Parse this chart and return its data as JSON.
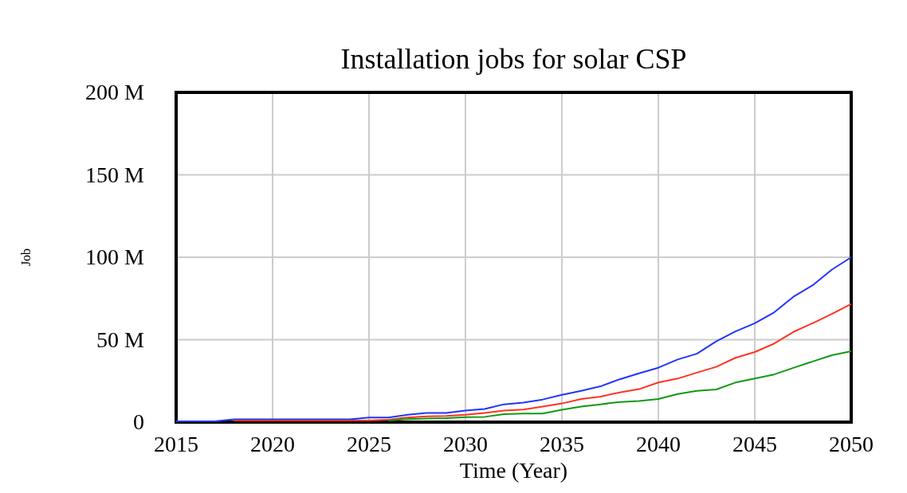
{
  "chart_data": {
    "type": "line",
    "title": "Installation jobs for solar CSP",
    "xlabel": "Time (Year)",
    "ylabel": "Job",
    "x": [
      2015,
      2016,
      2017,
      2018,
      2019,
      2020,
      2021,
      2022,
      2023,
      2024,
      2025,
      2026,
      2027,
      2028,
      2029,
      2030,
      2031,
      2032,
      2033,
      2034,
      2035,
      2036,
      2037,
      2038,
      2039,
      2040,
      2041,
      2042,
      2043,
      2044,
      2045,
      2046,
      2047,
      2048,
      2049,
      2050
    ],
    "series": [
      {
        "color": "#2233ff",
        "values": [
          0.5,
          0.5,
          0.5,
          1.7,
          1.7,
          1.7,
          1.7,
          1.7,
          1.7,
          1.7,
          2.8,
          2.8,
          4.5,
          5.6,
          5.6,
          7,
          8,
          10.8,
          11.8,
          13.7,
          16.5,
          19,
          21.7,
          26,
          29.6,
          33,
          38,
          41.5,
          49,
          55,
          60,
          66.5,
          76,
          83,
          92.5,
          100
        ]
      },
      {
        "color": "#ff3322",
        "values": [
          null,
          null,
          null,
          1,
          1,
          1,
          1,
          1,
          1,
          1,
          1,
          1.5,
          2.8,
          3.5,
          3.8,
          4.5,
          5.5,
          7,
          7.6,
          9.4,
          11.3,
          14,
          15.5,
          18,
          20,
          24,
          26.4,
          30,
          33.5,
          39,
          42.5,
          47.6,
          54.7,
          60,
          65.6,
          71.7
        ]
      },
      {
        "color": "#119911",
        "values": [
          null,
          null,
          null,
          null,
          null,
          null,
          null,
          null,
          null,
          null,
          null,
          1,
          1.8,
          2.2,
          2.4,
          3,
          3.2,
          4.8,
          5.2,
          5.2,
          7.5,
          9.4,
          10.8,
          12.2,
          12.8,
          14,
          17,
          19,
          19.8,
          24,
          26.4,
          28.9,
          32.9,
          36.8,
          40.6,
          43
        ]
      }
    ],
    "xlim": [
      2015,
      2050
    ],
    "xticks": [
      2015,
      2020,
      2025,
      2030,
      2035,
      2040,
      2045,
      2050
    ],
    "ylim": [
      0,
      200
    ],
    "yticks": [
      {
        "value": 0,
        "label": "0"
      },
      {
        "value": 50,
        "label": "50 M"
      },
      {
        "value": 100,
        "label": "100 M"
      },
      {
        "value": 150,
        "label": "150 M"
      },
      {
        "value": 200,
        "label": "200 M"
      }
    ],
    "grid": true,
    "marker": "none",
    "line_style": "solid"
  }
}
